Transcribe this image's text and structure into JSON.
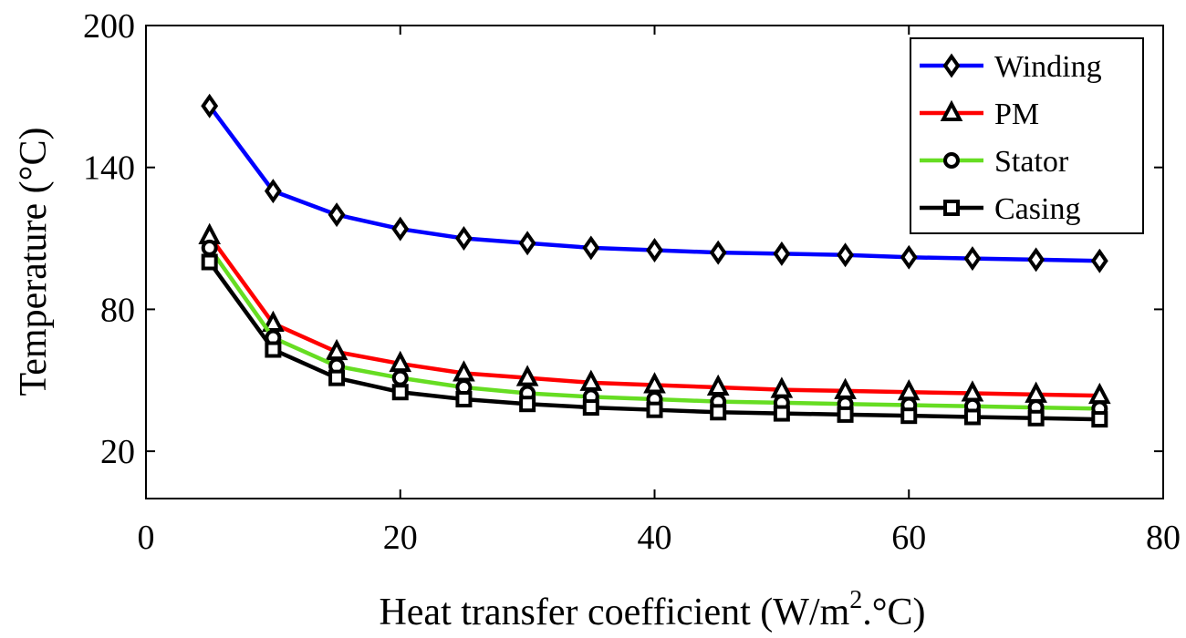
{
  "chart_data": {
    "type": "line",
    "title": "",
    "xlabel": "Heat transfer coefficient (W/m",
    "xlabel_superscript": "2",
    "xlabel_suffix": ".°C)",
    "ylabel": "Temperature (°C)",
    "xlim": [
      0,
      80
    ],
    "ylim": [
      0,
      200
    ],
    "xticks": [
      0,
      20,
      40,
      60,
      80
    ],
    "yticks": [
      20,
      80,
      140,
      200
    ],
    "grid": false,
    "legend_position": "top-right",
    "x": [
      5,
      10,
      15,
      20,
      25,
      30,
      35,
      40,
      45,
      50,
      55,
      60,
      65,
      70,
      75
    ],
    "series": [
      {
        "name": "Winding",
        "color": "#0000ff",
        "marker": "diamond",
        "values": [
          166,
          130,
          120,
          114,
          110,
          108,
          106,
          105,
          104,
          103.5,
          103,
          102,
          101.5,
          101,
          100.5
        ]
      },
      {
        "name": "PM",
        "color": "#ff0000",
        "marker": "triangle",
        "values": [
          111,
          74,
          62,
          57,
          53,
          51,
          49,
          48,
          47,
          46,
          45.5,
          45,
          44.5,
          44,
          43.5
        ]
      },
      {
        "name": "Stator",
        "color": "#66dd22",
        "marker": "circle",
        "values": [
          106,
          68,
          56,
          51,
          47,
          44.5,
          43,
          42,
          41,
          40.5,
          40,
          39.5,
          39,
          38.5,
          38
        ]
      },
      {
        "name": "Casing",
        "color": "#000000",
        "marker": "square",
        "values": [
          100,
          63,
          51,
          45,
          42,
          40,
          38.5,
          37.5,
          36.5,
          36,
          35.5,
          35,
          34.5,
          34,
          33.5
        ]
      }
    ]
  }
}
